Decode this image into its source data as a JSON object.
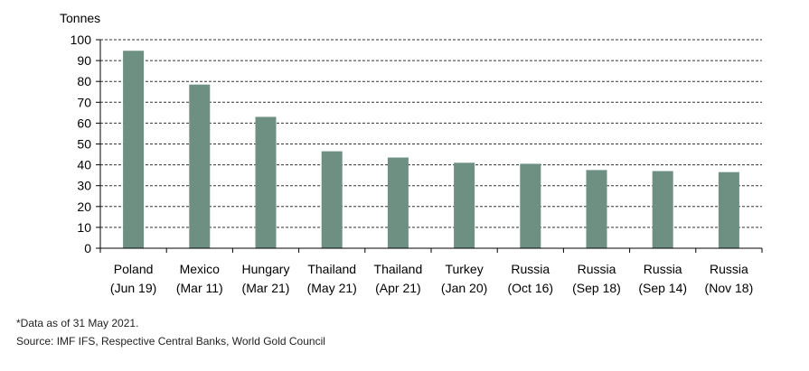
{
  "chart_data": {
    "type": "bar",
    "unit_label": "Tonnes",
    "categories": [
      [
        "Poland",
        "(Jun 19)"
      ],
      [
        "Mexico",
        "(Mar 11)"
      ],
      [
        "Hungary",
        "(Mar 21)"
      ],
      [
        "Thailand",
        "(May 21)"
      ],
      [
        "Thailand",
        "(Apr 21)"
      ],
      [
        "Turkey",
        "(Jan 20)"
      ],
      [
        "Russia",
        "(Oct 16)"
      ],
      [
        "Russia",
        "(Sep 18)"
      ],
      [
        "Russia",
        "(Sep 14)"
      ],
      [
        "Russia",
        "(Nov 18)"
      ]
    ],
    "values": [
      94.7,
      78.5,
      63.0,
      46.5,
      43.5,
      41.0,
      40.5,
      37.5,
      37.0,
      36.5
    ],
    "ylim": [
      0,
      100
    ],
    "yticks": [
      0,
      10,
      20,
      30,
      40,
      50,
      60,
      70,
      80,
      90,
      100
    ],
    "grid": true,
    "bar_color": "#6e9083",
    "grid_color": "#333333"
  },
  "footnote": "*Data as of 31 May 2021.",
  "source": "Source: IMF IFS, Respective Central Banks, World Gold Council"
}
